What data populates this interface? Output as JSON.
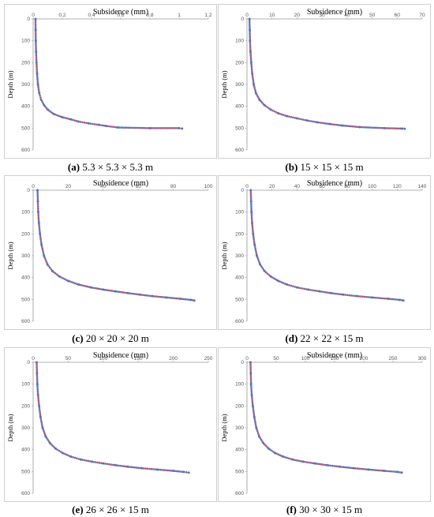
{
  "colors": {
    "line": "#d9534f",
    "marker": "#4a74c9",
    "axis": "#999999",
    "border": "#cfcfcf"
  },
  "panels": [
    {
      "label": "(a)",
      "size": "5.3 × 5.3 × 5.3 m"
    },
    {
      "label": "(b)",
      "size": "15 × 15 × 15 m"
    },
    {
      "label": "(c)",
      "size": "20 × 20 × 20 m"
    },
    {
      "label": "(d)",
      "size": "22 × 22 × 15 m"
    },
    {
      "label": "(e)",
      "size": "26 × 26 × 15 m"
    },
    {
      "label": "(f)",
      "size": "30 × 30 × 15 m"
    }
  ],
  "chart_data": [
    {
      "type": "scatter",
      "xlabel": "Subsidence (mm)",
      "ylabel": "Depth (m)",
      "xlim": [
        0,
        1.2
      ],
      "ylim": [
        0,
        600
      ],
      "xticks": [
        "0",
        "0.2",
        "0.4",
        "0.6",
        "0.8",
        "1",
        "1.2"
      ],
      "yticks": [
        "0",
        "100",
        "200",
        "300",
        "400",
        "500",
        "600"
      ],
      "x": [
        0.016,
        0.017,
        0.018,
        0.02,
        0.023,
        0.027,
        0.033,
        0.042,
        0.055,
        0.075,
        0.1,
        0.14,
        0.2,
        0.26,
        0.31,
        0.38,
        0.45,
        0.5,
        0.58,
        0.8,
        1.0,
        1.02
      ],
      "y": [
        0,
        50,
        100,
        150,
        200,
        250,
        300,
        340,
        370,
        395,
        415,
        435,
        450,
        460,
        470,
        478,
        485,
        490,
        497,
        500,
        500,
        502
      ]
    },
    {
      "type": "scatter",
      "xlabel": "Subsidence (mm)",
      "ylabel": "Depth (m)",
      "xlim": [
        0,
        70
      ],
      "ylim": [
        0,
        600
      ],
      "xticks": [
        "0",
        "10",
        "20",
        "30",
        "40",
        "50",
        "60",
        "70"
      ],
      "yticks": [
        "0",
        "100",
        "200",
        "300",
        "400",
        "500",
        "600"
      ],
      "x": [
        1.0,
        1.1,
        1.2,
        1.4,
        1.7,
        2.1,
        2.7,
        3.6,
        5.0,
        7.0,
        9.5,
        12.5,
        16,
        20,
        24,
        28,
        33,
        38,
        45,
        55,
        62,
        63
      ],
      "y": [
        0,
        50,
        100,
        150,
        200,
        250,
        300,
        340,
        370,
        395,
        415,
        432,
        445,
        455,
        465,
        473,
        481,
        488,
        495,
        500,
        502,
        503
      ]
    },
    {
      "type": "scatter",
      "xlabel": "Subsidence (mm)",
      "ylabel": "Depth (m)",
      "xlim": [
        0,
        100
      ],
      "ylim": [
        0,
        600
      ],
      "xticks": [
        "0",
        "20",
        "40",
        "60",
        "80",
        "100"
      ],
      "yticks": [
        "0",
        "100",
        "200",
        "300",
        "400",
        "500",
        "600"
      ],
      "x": [
        2.5,
        2.7,
        2.9,
        3.3,
        3.9,
        4.8,
        6.2,
        8.2,
        11,
        15,
        20,
        26,
        33,
        40,
        47,
        54,
        61,
        68,
        76,
        84,
        90,
        92
      ],
      "y": [
        0,
        50,
        100,
        150,
        200,
        250,
        300,
        340,
        370,
        395,
        415,
        432,
        445,
        455,
        463,
        471,
        478,
        485,
        491,
        497,
        502,
        505
      ]
    },
    {
      "type": "scatter",
      "xlabel": "Subsidence (mm)",
      "ylabel": "Depth (m)",
      "xlim": [
        0,
        140
      ],
      "ylim": [
        0,
        600
      ],
      "xticks": [
        "0",
        "20",
        "40",
        "60",
        "80",
        "100",
        "120",
        "140"
      ],
      "yticks": [
        "0",
        "100",
        "200",
        "300",
        "400",
        "500",
        "600"
      ],
      "x": [
        3.0,
        3.3,
        3.6,
        4.1,
        4.9,
        6.1,
        7.9,
        10.5,
        14,
        19,
        25,
        32,
        40,
        49,
        58,
        67,
        77,
        88,
        100,
        113,
        122,
        125
      ],
      "y": [
        0,
        50,
        100,
        150,
        200,
        250,
        300,
        340,
        370,
        395,
        415,
        432,
        445,
        455,
        463,
        471,
        478,
        485,
        491,
        497,
        502,
        505
      ]
    },
    {
      "type": "scatter",
      "xlabel": "Subsidence (mm)",
      "ylabel": "Depth (m)",
      "xlim": [
        0,
        250
      ],
      "ylim": [
        0,
        600
      ],
      "xticks": [
        "0",
        "50",
        "100",
        "150",
        "200",
        "250"
      ],
      "yticks": [
        "0",
        "100",
        "200",
        "300",
        "400",
        "500",
        "600"
      ],
      "x": [
        5,
        5.5,
        6,
        7,
        8.5,
        10.5,
        13.5,
        18,
        24,
        32,
        42,
        54,
        68,
        84,
        100,
        117,
        135,
        155,
        177,
        200,
        215,
        222
      ],
      "y": [
        0,
        50,
        100,
        150,
        200,
        250,
        300,
        340,
        370,
        395,
        415,
        432,
        445,
        455,
        463,
        471,
        478,
        485,
        491,
        497,
        502,
        505
      ]
    },
    {
      "type": "scatter",
      "xlabel": "Subsidence (mm)",
      "ylabel": "Depth (m)",
      "xlim": [
        0,
        300
      ],
      "ylim": [
        0,
        600
      ],
      "xticks": [
        "0",
        "50",
        "100",
        "150",
        "200",
        "250",
        "300"
      ],
      "yticks": [
        "0",
        "100",
        "200",
        "300",
        "400",
        "500",
        "600"
      ],
      "x": [
        6,
        6.5,
        7,
        8.2,
        10,
        12.5,
        16,
        21,
        28,
        37,
        48,
        62,
        78,
        96,
        116,
        137,
        159,
        183,
        208,
        235,
        258,
        265
      ],
      "y": [
        0,
        50,
        100,
        150,
        200,
        250,
        300,
        340,
        370,
        395,
        415,
        432,
        445,
        455,
        463,
        471,
        478,
        485,
        491,
        497,
        502,
        505
      ]
    }
  ]
}
